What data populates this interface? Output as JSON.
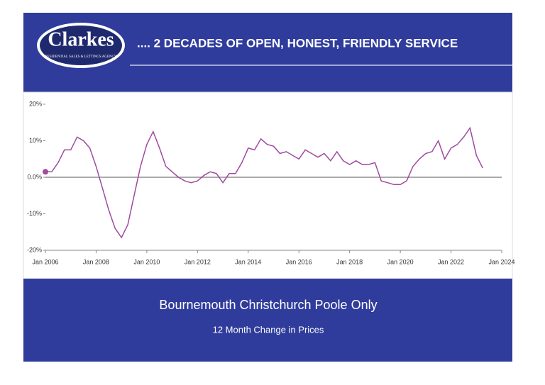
{
  "header": {
    "logo_name": "Clarkes",
    "logo_subtitle": "RESIDENTIAL SALES & LETTINGS AGENCY",
    "tagline": ".... 2 DECADES OF OPEN, HONEST, FRIENDLY SERVICE"
  },
  "chart_data": {
    "type": "line",
    "title": "Bournemouth Christchurch Poole Only",
    "subtitle": "12 Month Change in Prices",
    "x": [
      "2006-01",
      "2006-04",
      "2006-07",
      "2006-10",
      "2007-01",
      "2007-04",
      "2007-07",
      "2007-10",
      "2008-01",
      "2008-04",
      "2008-07",
      "2008-10",
      "2009-01",
      "2009-04",
      "2009-07",
      "2009-10",
      "2010-01",
      "2010-04",
      "2010-07",
      "2010-10",
      "2011-01",
      "2011-04",
      "2011-07",
      "2011-10",
      "2012-01",
      "2012-04",
      "2012-07",
      "2012-10",
      "2013-01",
      "2013-04",
      "2013-07",
      "2013-10",
      "2014-01",
      "2014-04",
      "2014-07",
      "2014-10",
      "2015-01",
      "2015-04",
      "2015-07",
      "2015-10",
      "2016-01",
      "2016-04",
      "2016-07",
      "2016-10",
      "2017-01",
      "2017-04",
      "2017-07",
      "2017-10",
      "2018-01",
      "2018-04",
      "2018-07",
      "2018-10",
      "2019-01",
      "2019-04",
      "2019-07",
      "2019-10",
      "2020-01",
      "2020-04",
      "2020-07",
      "2020-10",
      "2021-01",
      "2021-04",
      "2021-07",
      "2021-10",
      "2022-01",
      "2022-04",
      "2022-07",
      "2022-10",
      "2023-01",
      "2023-04"
    ],
    "series": [
      {
        "name": "12 Month Change",
        "color": "#a04aa0",
        "values": [
          1.5,
          1.5,
          4,
          7.5,
          7.5,
          11,
          10,
          8,
          3,
          -3,
          -9,
          -14,
          -16.5,
          -13,
          -5,
          3,
          9,
          12.5,
          8,
          3,
          1.5,
          0,
          -1,
          -1.5,
          -1,
          0.5,
          1.5,
          1,
          -1.5,
          1,
          1,
          4,
          8,
          7.5,
          10.5,
          9,
          8.5,
          6.5,
          7,
          6,
          5,
          7.5,
          6.5,
          5.5,
          6.5,
          4.5,
          7,
          4.5,
          3.5,
          4.5,
          3.5,
          3.5,
          4,
          -1,
          -1.5,
          -2,
          -2,
          -1,
          3,
          5,
          6.5,
          7,
          10,
          5,
          8,
          9,
          11,
          13.5,
          6,
          2.5
        ]
      }
    ],
    "xlim": [
      "2006-01",
      "2024-01"
    ],
    "xticks": [
      {
        "value": "2006-01",
        "label": "Jan 2006"
      },
      {
        "value": "2008-01",
        "label": "Jan 2008"
      },
      {
        "value": "2010-01",
        "label": "Jan 2010"
      },
      {
        "value": "2012-01",
        "label": "Jan 2012"
      },
      {
        "value": "2014-01",
        "label": "Jan 2014"
      },
      {
        "value": "2016-01",
        "label": "Jan 2016"
      },
      {
        "value": "2018-01",
        "label": "Jan 2018"
      },
      {
        "value": "2020-01",
        "label": "Jan 2020"
      },
      {
        "value": "2022-01",
        "label": "Jan 2022"
      },
      {
        "value": "2024-01",
        "label": "Jan 2024"
      }
    ],
    "ylim": [
      -20,
      20
    ],
    "yticks": [
      {
        "value": 20,
        "label": "20%"
      },
      {
        "value": 10,
        "label": "10%"
      },
      {
        "value": 0,
        "label": "0.0%"
      },
      {
        "value": -10,
        "label": "-10%"
      },
      {
        "value": -20,
        "label": "-20%"
      }
    ]
  }
}
